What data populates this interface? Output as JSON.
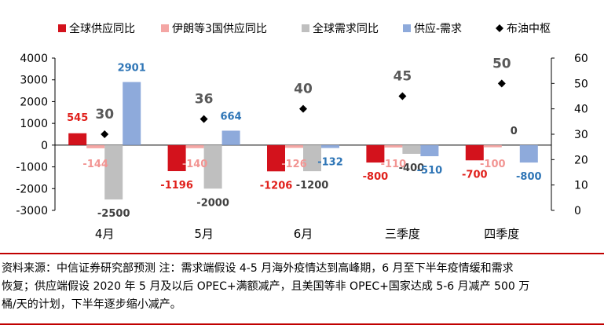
{
  "chart_data": {
    "type": "bar",
    "categories": [
      "4月",
      "5月",
      "6月",
      "三季度",
      "四季度"
    ],
    "series": [
      {
        "name": "全球供应同比",
        "color": "#d3121c",
        "values": [
          545,
          -1196,
          -1206,
          -800,
          -700
        ],
        "labels": [
          "545",
          "-1196",
          "-1206",
          "-800",
          "-700"
        ],
        "label_color": "#e0201b"
      },
      {
        "name": "伊朗等3国供应同比",
        "color": "#f4a6a4",
        "values": [
          -144,
          -140,
          -126,
          -110,
          -100
        ],
        "labels": [
          "-144",
          "-140",
          "-126",
          "-110",
          "-100"
        ],
        "label_color": "#f29593"
      },
      {
        "name": "全球需求同比",
        "color": "#bfbfbf",
        "values": [
          -2500,
          -2000,
          -1200,
          -400,
          0
        ],
        "labels": [
          "-2500",
          "-2000",
          "-1200",
          "-400",
          "0"
        ],
        "label_color": "#404040"
      },
      {
        "name": "供应-需求",
        "color": "#8eaadb",
        "values": [
          2901,
          664,
          -132,
          -510,
          -800
        ],
        "labels": [
          "2901",
          "664",
          "-132",
          "-510",
          "-800"
        ],
        "label_color": "#2e75b6"
      }
    ],
    "line_series": {
      "name": "布油中枢",
      "axis": "right",
      "marker": "diamond",
      "color": "#000000",
      "values": [
        30,
        36,
        40,
        45,
        50
      ],
      "labels": [
        "30",
        "36",
        "40",
        "45",
        "50"
      ]
    },
    "ylim_left": [
      -3000,
      4000
    ],
    "yticks_left": [
      -3000,
      -2000,
      -1000,
      0,
      1000,
      2000,
      3000,
      4000
    ],
    "ylim_right": [
      0,
      60
    ],
    "yticks_right": [
      0,
      10,
      20,
      30,
      40,
      50,
      60
    ],
    "legend_position": "top",
    "grid": false
  },
  "footnote": {
    "lines": [
      "资料来源：中信证券研究部预测   注：需求端假设 4-5 月海外疫情达到高峰期，6 月至下半年疫情缓和需求",
      "恢复；供应端假设 2020 年 5 月及以后 OPEC+满额减产，且美国等非 OPEC+国家达成 5-6 月减产 500 万",
      "桶/天的计划，下半年逐步缩小减产。"
    ]
  }
}
